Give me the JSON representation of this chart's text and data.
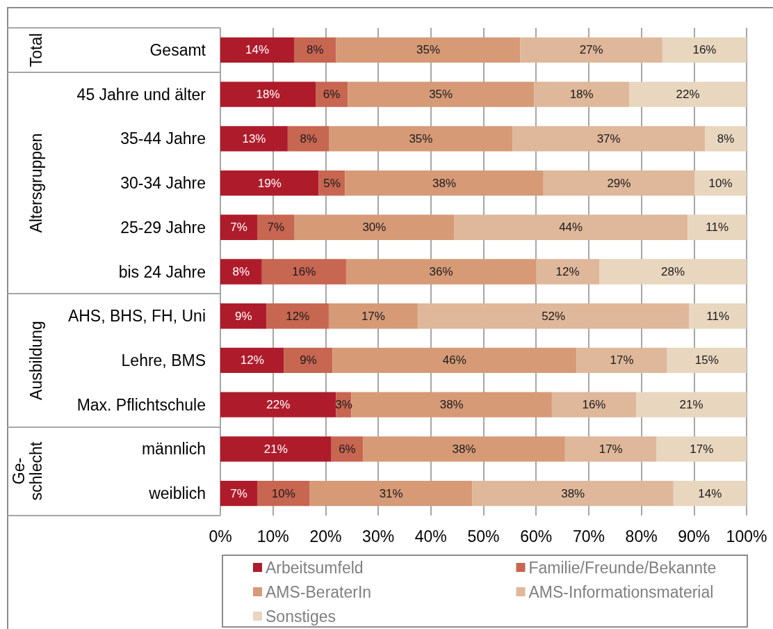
{
  "chart_data": {
    "type": "bar",
    "orientation": "horizontal",
    "stacked": true,
    "categories": [
      "Gesamt",
      "45 Jahre und älter",
      "35-44 Jahre",
      "30-34 Jahre",
      "25-29 Jahre",
      "bis 24 Jahre",
      "AHS, BHS, FH, Uni",
      "Lehre, BMS",
      "Max. Pflichtschule",
      "männlich",
      "weiblich"
    ],
    "series": [
      {
        "name": "Arbeitsumfeld",
        "color": "#ae1c2c",
        "values": [
          14.0,
          18.1,
          12.8,
          18.7,
          7.0,
          7.9,
          8.8,
          12.1,
          22.0,
          21.1,
          7.0
        ],
        "value_labels": [
          "14%",
          "18%",
          "13%",
          "19%",
          "7%",
          "8%",
          "9%",
          "12%",
          "22%",
          "21%",
          "7%"
        ]
      },
      {
        "name": "Familie/Freunde/Bekannte",
        "color": "#c76651",
        "values": [
          8.0,
          6.1,
          7.9,
          5.0,
          7.1,
          16.0,
          11.8,
          9.2,
          2.9,
          6.0,
          10.0
        ],
        "value_labels": [
          "8%",
          "6%",
          "8%",
          "5%",
          "7%",
          "16%",
          "12%",
          "9%",
          "3%",
          "6%",
          "10%"
        ]
      },
      {
        "name": "AMS-BeraterIn",
        "color": "#d69a77",
        "values": [
          35.0,
          35.4,
          34.8,
          37.7,
          30.3,
          36.1,
          16.9,
          46.4,
          38.1,
          38.4,
          30.9
        ],
        "value_labels": [
          "35%",
          "35%",
          "35%",
          "38%",
          "30%",
          "36%",
          "17%",
          "46%",
          "38%",
          "38%",
          "31%"
        ]
      },
      {
        "name": "AMS-Informationsmaterial",
        "color": "#dfb79a",
        "values": [
          27.0,
          18.1,
          36.6,
          28.7,
          44.4,
          12.0,
          51.6,
          17.2,
          16.0,
          17.4,
          38.2
        ],
        "value_labels": [
          "27%",
          "18%",
          "37%",
          "29%",
          "44%",
          "12%",
          "52%",
          "17%",
          "16%",
          "17%",
          "38%"
        ]
      },
      {
        "name": "Sonstiges",
        "color": "#e8d6bf",
        "values": [
          16.0,
          22.3,
          7.9,
          9.9,
          11.2,
          28.0,
          10.9,
          15.1,
          21.0,
          17.1,
          13.9
        ],
        "value_labels": [
          "16%",
          "22%",
          "8%",
          "10%",
          "11%",
          "28%",
          "11%",
          "15%",
          "21%",
          "17%",
          "14%"
        ]
      }
    ],
    "xlim": [
      0,
      100
    ],
    "xticks": [
      {
        "value": 0,
        "label": "0%"
      },
      {
        "value": 10,
        "label": "10%"
      },
      {
        "value": 20,
        "label": "20%"
      },
      {
        "value": 30,
        "label": "30%"
      },
      {
        "value": 40,
        "label": "40%"
      },
      {
        "value": 50,
        "label": "50%"
      },
      {
        "value": 60,
        "label": "60%"
      },
      {
        "value": 70,
        "label": "70%"
      },
      {
        "value": 80,
        "label": "80%"
      },
      {
        "value": 90,
        "label": "90%"
      },
      {
        "value": 100,
        "label": "100%"
      }
    ],
    "annotations": [
      "Total",
      "Altersgruppen",
      "Ausbildung",
      "Ge-\nschlecht"
    ],
    "grid": "x",
    "legend": "bottom"
  }
}
